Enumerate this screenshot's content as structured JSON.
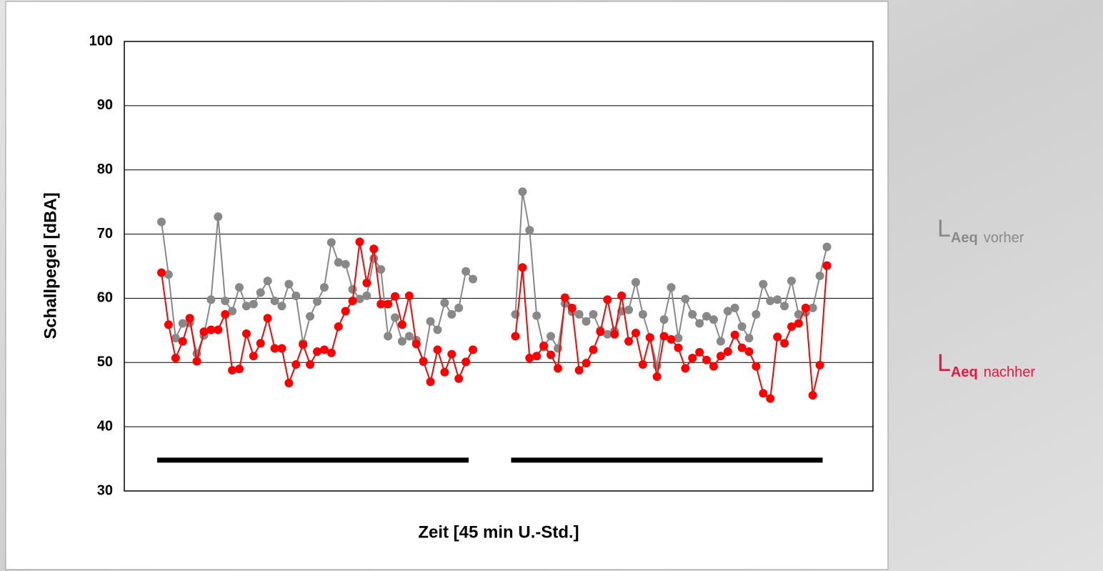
{
  "chart_data": {
    "type": "line",
    "y_axis_label": "Schallpegel [dBA]",
    "x_axis_label": "Zeit [45 min U.-Std.]",
    "ylim": [
      30,
      100
    ],
    "yticks": [
      30,
      40,
      50,
      60,
      70,
      80,
      90,
      100
    ],
    "grid": true,
    "legend_symbol": "L",
    "legend_subscript": "Aeq",
    "categories": [
      null,
      null,
      null,
      null,
      null,
      null,
      null,
      null,
      null,
      null,
      null,
      null,
      null,
      null,
      null,
      null,
      null,
      null,
      null,
      null,
      null,
      null,
      null,
      null,
      null,
      null,
      null,
      null,
      null,
      null,
      null,
      null,
      null,
      null,
      null,
      null,
      null,
      null,
      null,
      null,
      null,
      null,
      null,
      null,
      null,
      null,
      null,
      null,
      null,
      null,
      null,
      null,
      null,
      null,
      null,
      null,
      null,
      null,
      null,
      null,
      null,
      null,
      null,
      null,
      null,
      null,
      null,
      null,
      null,
      null,
      null,
      null,
      null,
      null,
      null,
      null,
      null,
      null,
      null,
      null,
      null,
      null,
      null,
      null,
      null,
      null,
      null,
      null,
      null,
      null,
      null,
      null,
      null,
      null,
      null
    ],
    "series": [
      {
        "name": "vorher",
        "color": "#888888",
        "values": [
          71.9,
          63.7,
          53.8,
          56.1,
          56.2,
          51.4,
          54.2,
          59.8,
          72.7,
          59.6,
          58.0,
          61.7,
          58.8,
          59.1,
          60.9,
          62.7,
          59.6,
          58.8,
          62.2,
          60.4,
          53.0,
          57.2,
          59.5,
          61.7,
          68.7,
          65.6,
          65.3,
          61.4,
          59.9,
          60.4,
          66.2,
          64.5,
          54.1,
          57.0,
          53.3,
          54.1,
          53.5,
          50.1,
          56.4,
          55.1,
          59.3,
          57.5,
          58.5,
          64.2,
          63.0,
          null,
          null,
          null,
          null,
          null,
          57.5,
          76.6,
          70.6,
          57.3,
          52.4,
          54.1,
          52.2,
          59.2,
          57.9,
          57.5,
          56.4,
          57.5,
          55.0,
          54.4,
          54.9,
          58.0,
          58.2,
          62.5,
          57.5,
          53.9,
          49.5,
          56.7,
          61.7,
          53.8,
          59.9,
          57.5,
          56.1,
          57.2,
          56.7,
          53.3,
          58.0,
          58.5,
          55.6,
          53.8,
          57.5,
          62.2,
          59.6,
          59.8,
          58.8,
          62.7,
          57.5,
          57.8,
          58.5,
          63.5,
          68.0
        ]
      },
      {
        "name": "nachher",
        "color": "#ff0000",
        "values": [
          64.0,
          55.9,
          50.7,
          53.3,
          56.9,
          50.2,
          54.8,
          55.1,
          55.1,
          57.5,
          48.8,
          49.0,
          54.5,
          51.0,
          53.0,
          56.9,
          52.2,
          52.2,
          46.8,
          49.7,
          52.8,
          49.7,
          51.7,
          52.0,
          51.5,
          55.6,
          58.0,
          59.6,
          68.8,
          62.4,
          67.7,
          59.1,
          59.1,
          60.3,
          55.9,
          60.4,
          52.9,
          50.2,
          47.0,
          52.0,
          48.5,
          51.3,
          47.5,
          50.1,
          52.0,
          null,
          null,
          null,
          null,
          null,
          54.1,
          64.8,
          50.7,
          51.0,
          52.6,
          51.2,
          49.1,
          60.1,
          58.5,
          48.8,
          49.9,
          52.0,
          54.8,
          59.8,
          54.4,
          60.4,
          53.3,
          54.6,
          49.7,
          53.9,
          47.8,
          54.1,
          53.6,
          52.3,
          49.1,
          50.7,
          51.6,
          50.4,
          49.4,
          51.0,
          51.7,
          54.3,
          52.3,
          51.7,
          49.4,
          45.2,
          44.4,
          54.0,
          53.0,
          55.6,
          56.1,
          58.5,
          44.9,
          49.6,
          65.1
        ]
      }
    ],
    "bars": [
      {
        "from": 0,
        "to": 44,
        "value": 34.8,
        "color": "#000000"
      },
      {
        "from": 50,
        "to": 94,
        "value": 34.8,
        "color": "#000000"
      }
    ]
  }
}
